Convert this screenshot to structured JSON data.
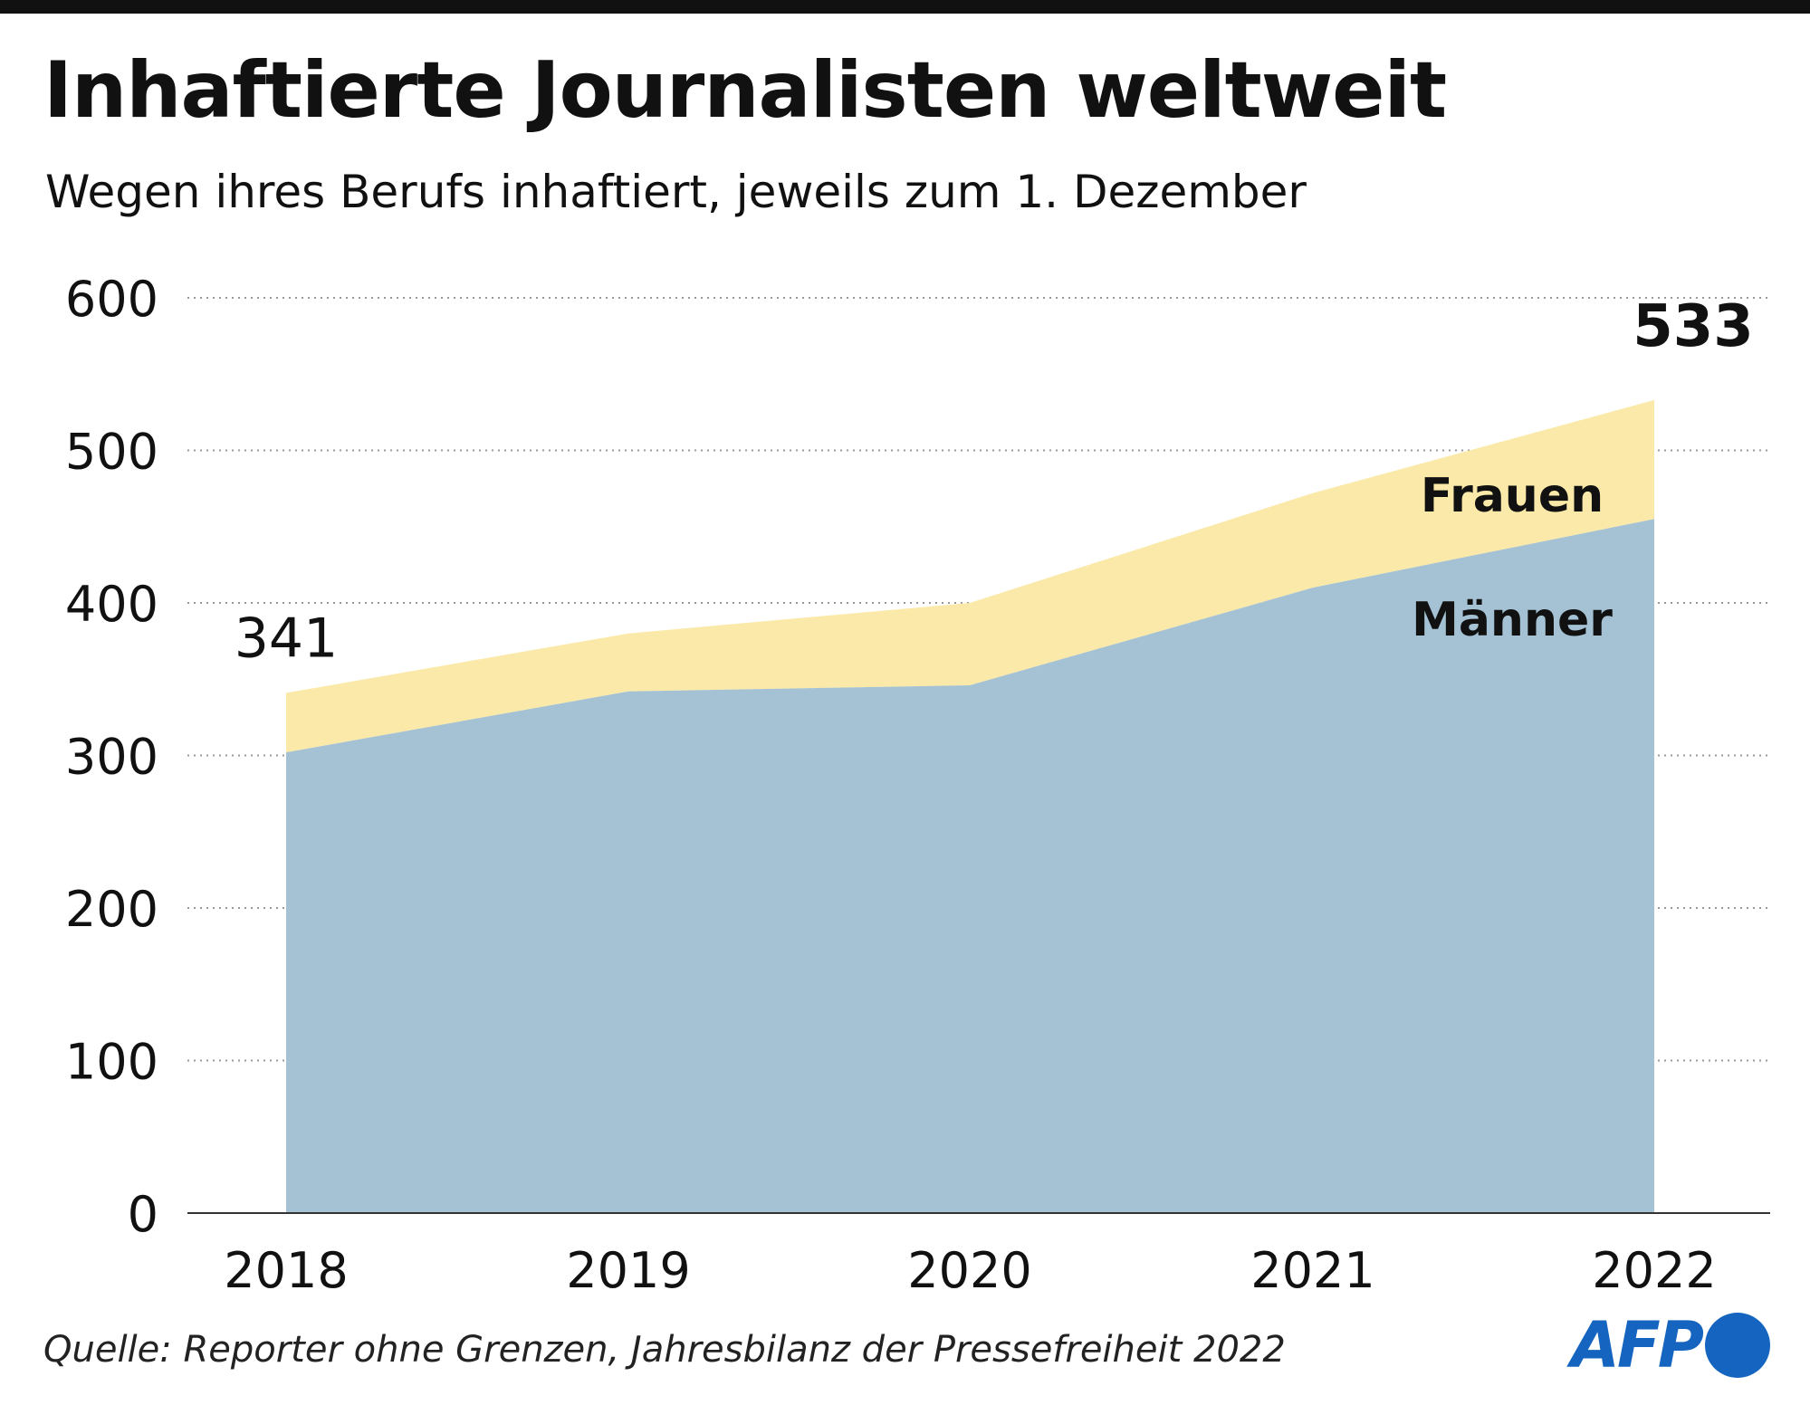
{
  "title": "Inhaftierte Journalisten weltweit",
  "subtitle": "Wegen ihres Berufs inhaftiert, jeweils zum 1. Dezember",
  "source": "Quelle: Reporter ohne Grenzen, Jahresbilanz der Pressefreiheit 2022",
  "logo": "AFP",
  "colors": {
    "maenner": "#a4c2d3",
    "frauen": "#fae9a8"
  },
  "chart_data": {
    "type": "area",
    "stacked": true,
    "title": "Inhaftierte Journalisten weltweit",
    "x": [
      "2018",
      "2019",
      "2020",
      "2021",
      "2022"
    ],
    "series": [
      {
        "name": "Männer",
        "values": [
          302,
          342,
          346,
          410,
          455
        ]
      },
      {
        "name": "Frauen",
        "values": [
          39,
          38,
          54,
          62,
          78
        ]
      }
    ],
    "totals": [
      341,
      380,
      400,
      472,
      533
    ],
    "annotations": {
      "first": "341",
      "last": "533"
    },
    "yticks": [
      "0",
      "100",
      "200",
      "300",
      "400",
      "500",
      "600"
    ],
    "ylim": [
      0,
      600
    ],
    "grid": "dotted horizontal",
    "legend": "inline labels right"
  }
}
